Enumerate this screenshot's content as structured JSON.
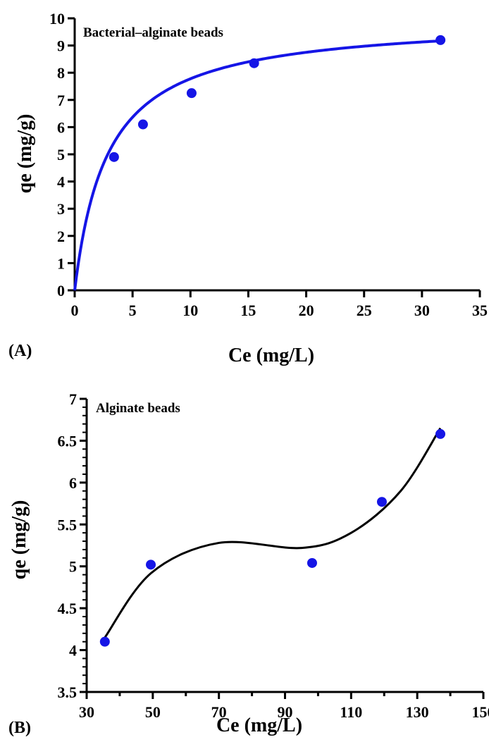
{
  "chart_data": [
    {
      "type": "scatter",
      "panel_label": "(A)",
      "title": "Bacterial–alginate beads",
      "xlabel": "Ce (mg/L)",
      "ylabel": "qe (mg/g)",
      "xlim": [
        0,
        35
      ],
      "ylim": [
        0,
        10
      ],
      "xticks": [
        0,
        5,
        10,
        15,
        20,
        25,
        30,
        35
      ],
      "yticks": [
        0,
        1,
        2,
        3,
        4,
        5,
        6,
        7,
        8,
        9,
        10
      ],
      "grid": false,
      "series": [
        {
          "x": [
            3.4,
            5.9,
            10.1,
            15.5,
            31.6
          ],
          "y": [
            4.9,
            6.1,
            7.25,
            8.35,
            9.2
          ],
          "color": "#1515e6",
          "marker": "circle",
          "fit": {
            "kind": "langmuir",
            "qmax": 10.0,
            "K": 0.35,
            "color": "#1515e6"
          }
        }
      ]
    },
    {
      "type": "scatter",
      "panel_label": "(B)",
      "title": "Alginate beads",
      "xlabel": "Ce (mg/L)",
      "ylabel": "qe (mg/g)",
      "xlim": [
        30,
        150
      ],
      "ylim": [
        3.5,
        7
      ],
      "xticks": [
        30,
        50,
        70,
        90,
        110,
        130,
        150
      ],
      "yticks": [
        3.5,
        4,
        4.5,
        5,
        5.5,
        6,
        6.5,
        7
      ],
      "grid": false,
      "series": [
        {
          "x": [
            35.5,
            49.4,
            98.2,
            119.3,
            137
          ],
          "y": [
            4.1,
            5.02,
            5.04,
            5.77,
            6.58
          ],
          "color": "#1515e6",
          "marker": "circle",
          "fit": {
            "kind": "smooth",
            "color": "#000000",
            "x": [
              35.5,
              49.5,
              70,
              95,
              110,
              125,
              137
            ],
            "y": [
              4.15,
              4.92,
              5.28,
              5.22,
              5.4,
              5.9,
              6.65
            ]
          }
        }
      ]
    }
  ]
}
